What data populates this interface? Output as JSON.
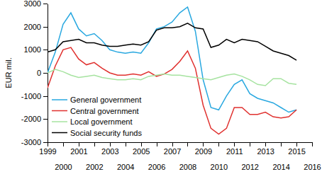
{
  "chart_data": {
    "type": "line",
    "y_label": "EUR mil.",
    "x": [
      1999,
      1999.5,
      2000,
      2000.5,
      2001,
      2001.5,
      2002,
      2002.5,
      2003,
      2003.5,
      2004,
      2004.5,
      2005,
      2005.5,
      2006,
      2006.5,
      2007,
      2007.5,
      2008,
      2008.5,
      2009,
      2009.5,
      2010,
      2010.5,
      2011,
      2011.5,
      2012,
      2012.5,
      2013,
      2013.5,
      2014,
      2014.5,
      2015
    ],
    "series": [
      {
        "name": "General government",
        "color": "#29a8e0",
        "values": [
          0,
          900,
          2100,
          2600,
          1900,
          1600,
          1700,
          1400,
          1000,
          900,
          850,
          900,
          850,
          1300,
          1900,
          2000,
          2200,
          2600,
          2850,
          1800,
          -300,
          -1500,
          -1600,
          -1000,
          -500,
          -300,
          -900,
          -1100,
          -1200,
          -1300,
          -1500,
          -1700,
          -1600
        ]
      },
      {
        "name": "Central government",
        "color": "#e0312f",
        "values": [
          -650,
          300,
          1000,
          1100,
          600,
          350,
          450,
          200,
          0,
          -100,
          -100,
          -50,
          -100,
          50,
          -150,
          -50,
          150,
          500,
          950,
          200,
          -1400,
          -2400,
          -2650,
          -2400,
          -1500,
          -1500,
          -1800,
          -1800,
          -1700,
          -1900,
          -1950,
          -1900,
          -1600
        ]
      },
      {
        "name": "Local government",
        "color": "#a6e3a0",
        "values": [
          0,
          150,
          50,
          -100,
          -200,
          -150,
          -100,
          -200,
          -250,
          -300,
          -300,
          -250,
          -300,
          -150,
          -100,
          -50,
          -100,
          -100,
          -150,
          -200,
          -250,
          -300,
          -200,
          -100,
          -50,
          -150,
          -300,
          -500,
          -550,
          -250,
          -250,
          -450,
          -500
        ]
      },
      {
        "name": "Social security funds",
        "color": "#000000",
        "values": [
          900,
          1000,
          1350,
          1400,
          1450,
          1300,
          1300,
          1200,
          1150,
          1150,
          1200,
          1250,
          1200,
          1350,
          1850,
          1950,
          1950,
          2000,
          2150,
          1950,
          1900,
          1100,
          1200,
          1450,
          1300,
          1450,
          1400,
          1350,
          1150,
          950,
          850,
          750,
          550
        ]
      }
    ],
    "xlim": [
      1999,
      2016
    ],
    "xticks": [
      1999,
      2000,
      2001,
      2002,
      2003,
      2004,
      2005,
      2006,
      2007,
      2008,
      2009,
      2010,
      2011,
      2012,
      2013,
      2014,
      2015,
      2016
    ],
    "ylim": [
      -3000,
      3000
    ],
    "yticks": [
      -3000,
      -2000,
      -1000,
      0,
      1000,
      2000,
      3000
    ],
    "grid": false,
    "legend": "lower left"
  }
}
